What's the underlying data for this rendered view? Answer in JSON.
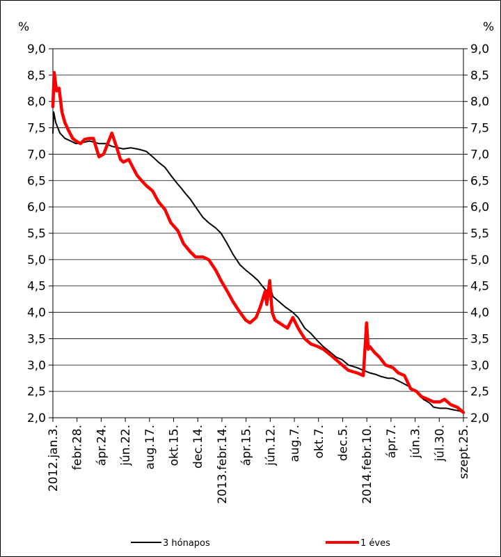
{
  "chart_data": {
    "type": "line",
    "y_unit_left": "%",
    "y_unit_right": "%",
    "ylim": [
      2.0,
      9.0
    ],
    "yticks": [
      "2,0",
      "2,5",
      "3,0",
      "3,5",
      "4,0",
      "4,5",
      "5,0",
      "5,5",
      "6,0",
      "6,5",
      "7,0",
      "7,5",
      "8,0",
      "8,5",
      "9,0"
    ],
    "x_tick_labels": [
      "2012.jan.3.",
      "febr.28.",
      "ápr.24.",
      "jún.22.",
      "aug.17.",
      "okt.15.",
      "dec.14.",
      "2013.febr.14.",
      "ápr.15.",
      "jún.12.",
      "aug.7.",
      "okt.7.",
      "dec.5.",
      "2014.febr.10.",
      "ápr.7.",
      "jún.3.",
      "júl.30.",
      "szept.25."
    ],
    "x_range": [
      "2012-01-03",
      "2014-09-25"
    ],
    "grid": true,
    "legend_placement": "bottom",
    "colors": {
      "three_month": "#000000",
      "one_year": "#ff0000"
    },
    "series": [
      {
        "name": "3 hónapos",
        "x": [
          "2012-01-03",
          "2012-01-05",
          "2012-01-10",
          "2012-01-20",
          "2012-02-01",
          "2012-02-15",
          "2012-02-28",
          "2012-03-15",
          "2012-04-01",
          "2012-04-24",
          "2012-05-10",
          "2012-05-25",
          "2012-06-10",
          "2012-06-22",
          "2012-07-10",
          "2012-07-25",
          "2012-08-05",
          "2012-08-17",
          "2012-09-01",
          "2012-09-15",
          "2012-10-01",
          "2012-10-15",
          "2012-10-30",
          "2012-11-10",
          "2012-11-20",
          "2012-12-01",
          "2012-12-14",
          "2013-01-01",
          "2013-01-15",
          "2013-02-01",
          "2013-02-14",
          "2013-03-01",
          "2013-03-15",
          "2013-04-01",
          "2013-04-15",
          "2013-05-01",
          "2013-05-15",
          "2013-05-25",
          "2013-06-05",
          "2013-06-12",
          "2013-06-20",
          "2013-07-05",
          "2013-07-20",
          "2013-08-07",
          "2013-08-20",
          "2013-09-05",
          "2013-09-20",
          "2013-10-07",
          "2013-10-20",
          "2013-11-05",
          "2013-11-20",
          "2013-12-05",
          "2013-12-20",
          "2014-01-10",
          "2014-01-25",
          "2014-02-10",
          "2014-02-25",
          "2014-03-10",
          "2014-03-25",
          "2014-04-07",
          "2014-04-25",
          "2014-05-10",
          "2014-05-25",
          "2014-06-03",
          "2014-06-20",
          "2014-07-05",
          "2014-07-15",
          "2014-07-30",
          "2014-08-15",
          "2014-09-01",
          "2014-09-15",
          "2014-09-25"
        ],
        "values": [
          7.4,
          7.8,
          7.6,
          7.4,
          7.3,
          7.25,
          7.2,
          7.22,
          7.25,
          7.2,
          7.2,
          7.15,
          7.12,
          7.1,
          7.12,
          7.1,
          7.08,
          7.05,
          6.95,
          6.85,
          6.75,
          6.6,
          6.45,
          6.35,
          6.25,
          6.15,
          6.0,
          5.8,
          5.7,
          5.6,
          5.5,
          5.3,
          5.1,
          4.9,
          4.8,
          4.7,
          4.6,
          4.5,
          4.4,
          4.5,
          4.3,
          4.2,
          4.1,
          4.0,
          3.9,
          3.7,
          3.6,
          3.45,
          3.35,
          3.25,
          3.15,
          3.1,
          3.0,
          2.95,
          2.9,
          2.85,
          2.82,
          2.78,
          2.75,
          2.75,
          2.68,
          2.62,
          2.55,
          2.48,
          2.35,
          2.28,
          2.2,
          2.18,
          2.18,
          2.15,
          2.13,
          2.1
        ]
      },
      {
        "name": "1 éves",
        "x": [
          "2012-01-03",
          "2012-01-06",
          "2012-01-12",
          "2012-01-18",
          "2012-01-25",
          "2012-02-01",
          "2012-02-10",
          "2012-02-20",
          "2012-02-28",
          "2012-03-10",
          "2012-03-20",
          "2012-04-01",
          "2012-04-10",
          "2012-04-24",
          "2012-05-05",
          "2012-05-15",
          "2012-05-25",
          "2012-06-05",
          "2012-06-15",
          "2012-06-22",
          "2012-07-05",
          "2012-07-15",
          "2012-07-25",
          "2012-08-05",
          "2012-08-17",
          "2012-09-01",
          "2012-09-15",
          "2012-10-01",
          "2012-10-15",
          "2012-11-01",
          "2012-11-15",
          "2012-12-01",
          "2012-12-14",
          "2013-01-01",
          "2013-01-15",
          "2013-02-01",
          "2013-02-14",
          "2013-03-01",
          "2013-03-15",
          "2013-04-01",
          "2013-04-15",
          "2013-04-25",
          "2013-05-10",
          "2013-05-20",
          "2013-06-01",
          "2013-06-05",
          "2013-06-12",
          "2013-06-18",
          "2013-06-25",
          "2013-07-05",
          "2013-07-15",
          "2013-07-25",
          "2013-08-07",
          "2013-08-20",
          "2013-09-05",
          "2013-09-20",
          "2013-10-07",
          "2013-10-20",
          "2013-11-05",
          "2013-11-20",
          "2013-12-05",
          "2013-12-20",
          "2014-01-10",
          "2014-01-25",
          "2014-02-02",
          "2014-02-06",
          "2014-02-10",
          "2014-02-20",
          "2014-03-05",
          "2014-03-20",
          "2014-04-07",
          "2014-04-20",
          "2014-05-05",
          "2014-05-20",
          "2014-06-03",
          "2014-06-15",
          "2014-07-01",
          "2014-07-15",
          "2014-07-30",
          "2014-08-10",
          "2014-08-25",
          "2014-09-10",
          "2014-09-25"
        ],
        "values": [
          7.9,
          8.55,
          8.2,
          8.25,
          7.8,
          7.6,
          7.45,
          7.3,
          7.25,
          7.2,
          7.28,
          7.3,
          7.3,
          6.95,
          7.0,
          7.2,
          7.4,
          7.15,
          6.9,
          6.85,
          6.9,
          6.75,
          6.6,
          6.5,
          6.4,
          6.3,
          6.1,
          5.95,
          5.7,
          5.55,
          5.3,
          5.15,
          5.05,
          5.05,
          5.0,
          4.8,
          4.6,
          4.4,
          4.2,
          4.0,
          3.85,
          3.8,
          3.9,
          4.1,
          4.4,
          4.15,
          4.6,
          4.0,
          3.85,
          3.8,
          3.75,
          3.7,
          3.9,
          3.7,
          3.5,
          3.4,
          3.35,
          3.3,
          3.2,
          3.1,
          3.0,
          2.9,
          2.85,
          2.8,
          3.8,
          3.3,
          3.35,
          3.25,
          3.15,
          3.0,
          2.95,
          2.85,
          2.8,
          2.55,
          2.5,
          2.4,
          2.35,
          2.3,
          2.3,
          2.35,
          2.25,
          2.2,
          2.1
        ]
      }
    ]
  }
}
